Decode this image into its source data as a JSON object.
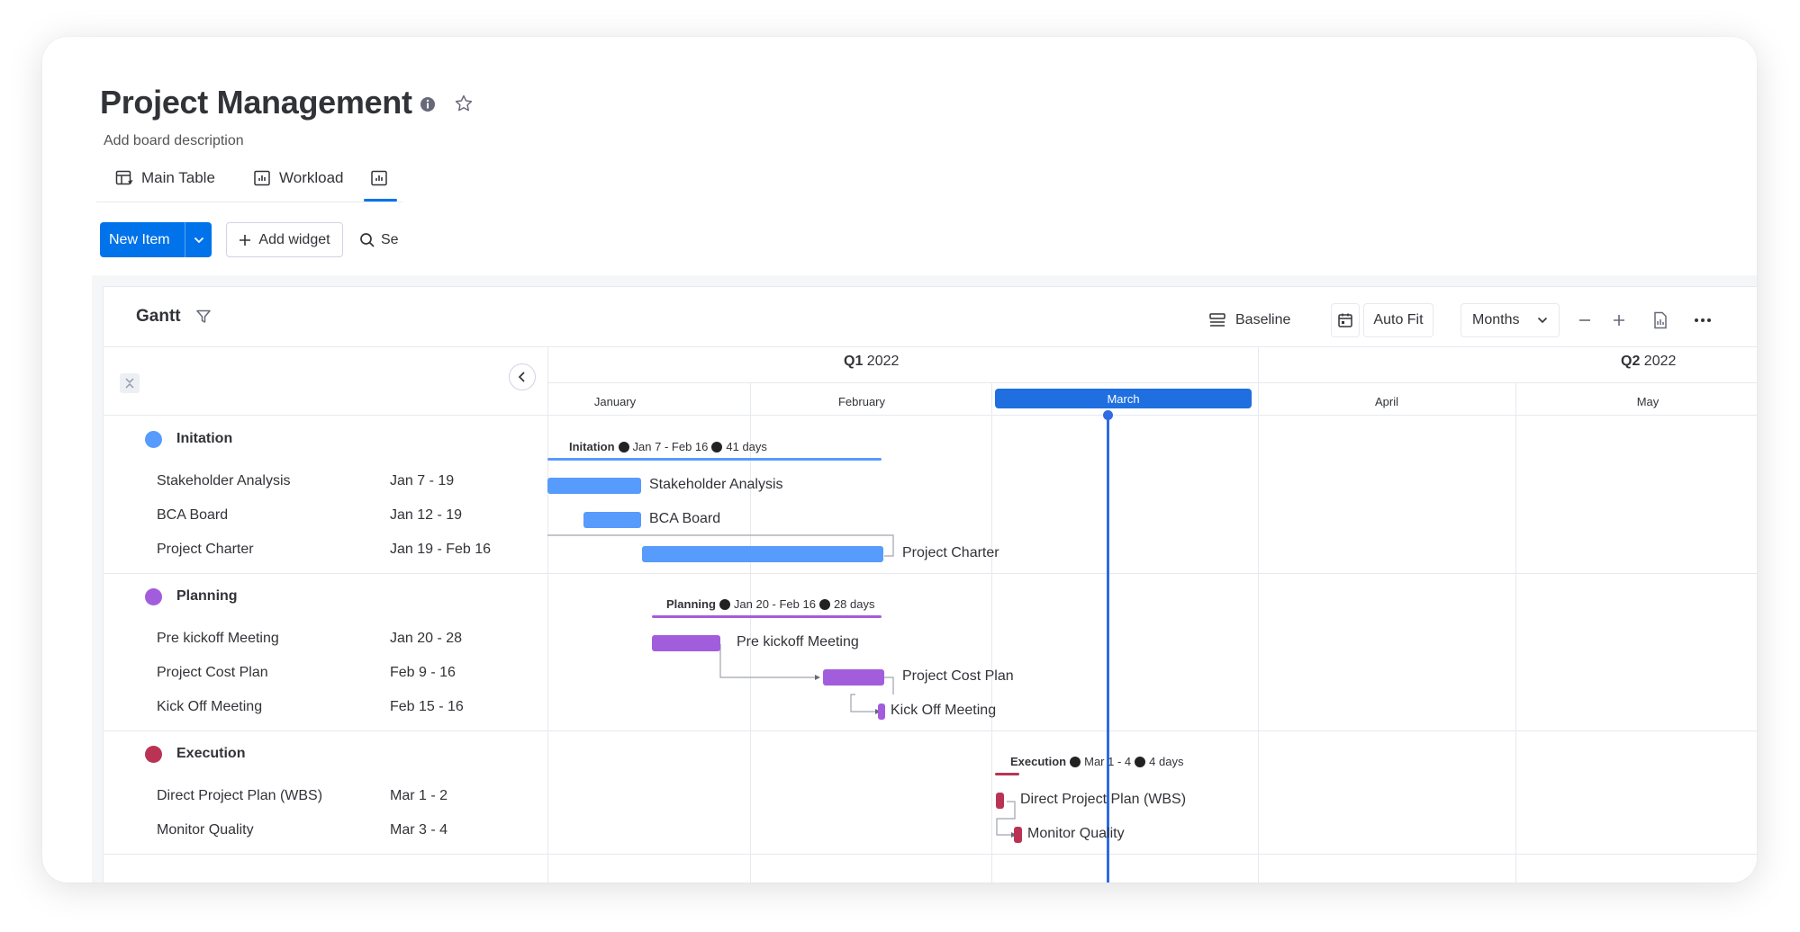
{
  "board": {
    "title": "Project Management",
    "description": "Add board description"
  },
  "tabs": [
    {
      "label": "Main Table",
      "icon": "table-icon"
    },
    {
      "label": "Workload",
      "icon": "chart-icon"
    },
    {
      "label": "",
      "icon": "chart-icon",
      "active": true
    }
  ],
  "actions": {
    "new_item": "New Item",
    "add_widget": "Add widget",
    "search": "Se"
  },
  "gantt": {
    "title": "Gantt",
    "baseline": "Baseline",
    "auto_fit": "Auto Fit",
    "zoom_mode": "Months",
    "quarters": [
      {
        "q": "Q1",
        "year": "2022"
      },
      {
        "q": "Q2",
        "year": "2022"
      }
    ],
    "months": [
      "January",
      "February",
      "March",
      "April",
      "May"
    ],
    "current_month": "March",
    "groups": [
      {
        "name": "Initation",
        "color": "#579bfc",
        "summary": {
          "name": "Initation",
          "range": "Jan 7 - Feb 16",
          "duration": "41 days"
        },
        "tasks": [
          {
            "name": "Stakeholder Analysis",
            "dates": "Jan 7 - 19"
          },
          {
            "name": "BCA Board",
            "dates": "Jan 12 - 19"
          },
          {
            "name": "Project Charter",
            "dates": "Jan 19 - Feb 16"
          }
        ]
      },
      {
        "name": "Planning",
        "color": "#a25ddc",
        "summary": {
          "name": "Planning",
          "range": "Jan 20 - Feb 16",
          "duration": "28 days"
        },
        "tasks": [
          {
            "name": "Pre kickoff Meeting",
            "dates": "Jan 20 - 28"
          },
          {
            "name": "Project Cost Plan",
            "dates": "Feb 9 - 16"
          },
          {
            "name": "Kick Off Meeting",
            "dates": "Feb 15 - 16"
          }
        ]
      },
      {
        "name": "Execution",
        "color": "#bb3354",
        "summary": {
          "name": "Execution",
          "range": "Mar 1 - 4",
          "duration": "4 days"
        },
        "tasks": [
          {
            "name": "Direct Project Plan (WBS)",
            "dates": "Mar 1 - 2"
          },
          {
            "name": "Monitor Quality",
            "dates": "Mar 3 - 4"
          }
        ]
      }
    ]
  }
}
